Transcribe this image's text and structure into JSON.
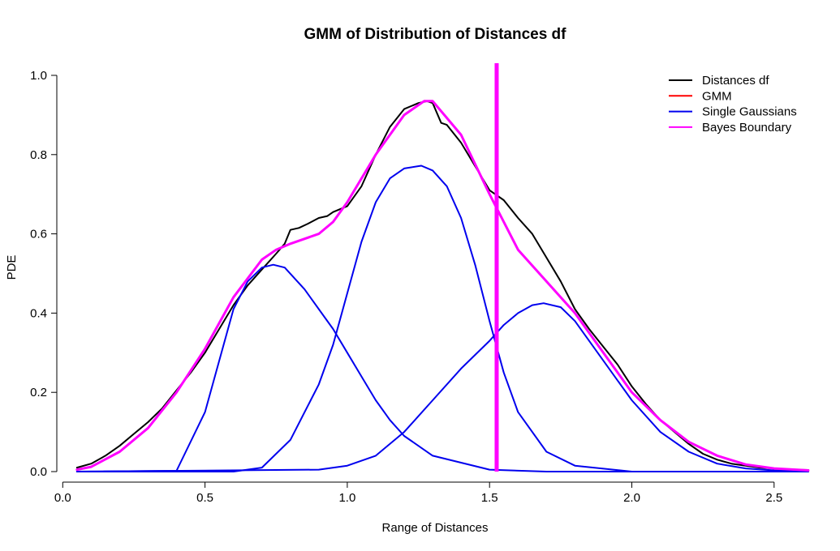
{
  "chart_data": {
    "type": "line",
    "title": "GMM of Distribution of Distances df",
    "xlabel": "Range of Distances",
    "ylabel": "PDE",
    "xlim": [
      0.05,
      2.62
    ],
    "ylim": [
      0.0,
      1.0
    ],
    "x_ticks": [
      {
        "value": 0.0,
        "label": "0.0"
      },
      {
        "value": 0.5,
        "label": "0.5"
      },
      {
        "value": 1.0,
        "label": "1.0"
      },
      {
        "value": 1.5,
        "label": "1.5"
      },
      {
        "value": 2.0,
        "label": "2.0"
      },
      {
        "value": 2.5,
        "label": "2.5"
      }
    ],
    "y_ticks": [
      {
        "value": 0.0,
        "label": "0.0"
      },
      {
        "value": 0.2,
        "label": "0.2"
      },
      {
        "value": 0.4,
        "label": "0.4"
      },
      {
        "value": 0.6,
        "label": "0.6"
      },
      {
        "value": 0.8,
        "label": "0.8"
      },
      {
        "value": 1.0,
        "label": "1.0"
      }
    ],
    "grid": false,
    "legend_position": "top-right",
    "legend": [
      {
        "label": "Distances df",
        "color": "#000000"
      },
      {
        "label": "GMM",
        "color": "#ff0000"
      },
      {
        "label": "Single Gaussians",
        "color": "#0000ee"
      },
      {
        "label": "Bayes Boundary",
        "color": "#ff00ff"
      }
    ],
    "series": [
      {
        "label": "Distances df",
        "color": "#000000",
        "x": [
          0.05,
          0.1,
          0.15,
          0.2,
          0.25,
          0.3,
          0.35,
          0.4,
          0.45,
          0.5,
          0.55,
          0.6,
          0.65,
          0.7,
          0.75,
          0.78,
          0.8,
          0.83,
          0.86,
          0.9,
          0.93,
          0.95,
          1.0,
          1.05,
          1.1,
          1.15,
          1.2,
          1.25,
          1.28,
          1.3,
          1.33,
          1.35,
          1.4,
          1.45,
          1.5,
          1.55,
          1.6,
          1.65,
          1.7,
          1.75,
          1.8,
          1.85,
          1.9,
          1.95,
          2.0,
          2.05,
          2.1,
          2.15,
          2.2,
          2.25,
          2.3,
          2.35,
          2.4,
          2.45,
          2.5,
          2.55,
          2.62
        ],
        "y": [
          0.01,
          0.02,
          0.04,
          0.065,
          0.095,
          0.125,
          0.16,
          0.205,
          0.25,
          0.3,
          0.36,
          0.42,
          0.47,
          0.51,
          0.55,
          0.575,
          0.61,
          0.615,
          0.625,
          0.64,
          0.645,
          0.655,
          0.67,
          0.72,
          0.8,
          0.87,
          0.915,
          0.93,
          0.935,
          0.93,
          0.88,
          0.875,
          0.83,
          0.77,
          0.71,
          0.685,
          0.64,
          0.6,
          0.54,
          0.48,
          0.41,
          0.36,
          0.315,
          0.27,
          0.215,
          0.17,
          0.13,
          0.1,
          0.07,
          0.045,
          0.03,
          0.02,
          0.015,
          0.01,
          0.008,
          0.005,
          0.004
        ]
      },
      {
        "label": "GMM",
        "color": "#ff0000",
        "x": [
          0.05,
          0.1,
          0.2,
          0.3,
          0.4,
          0.5,
          0.6,
          0.7,
          0.75,
          0.8,
          0.9,
          0.95,
          1.0,
          1.1,
          1.2,
          1.27,
          1.3,
          1.4,
          1.5,
          1.6,
          1.7,
          1.8,
          1.9,
          2.0,
          2.1,
          2.2,
          2.3,
          2.4,
          2.5,
          2.62
        ],
        "y": [
          0.005,
          0.012,
          0.05,
          0.11,
          0.2,
          0.31,
          0.44,
          0.535,
          0.56,
          0.575,
          0.6,
          0.63,
          0.68,
          0.8,
          0.9,
          0.935,
          0.935,
          0.85,
          0.7,
          0.56,
          0.48,
          0.4,
          0.3,
          0.2,
          0.13,
          0.075,
          0.04,
          0.018,
          0.008,
          0.003
        ]
      },
      {
        "label": "Single Gaussians",
        "color": "#0000ee",
        "x": [
          0.05,
          0.4,
          0.5,
          0.6,
          0.65,
          0.7,
          0.74,
          0.78,
          0.85,
          0.9,
          0.95,
          1.0,
          1.05,
          1.1,
          1.15,
          1.2,
          1.3,
          1.5,
          1.7,
          2.0,
          2.62
        ],
        "y": [
          0.0,
          0.002,
          0.15,
          0.41,
          0.48,
          0.515,
          0.522,
          0.515,
          0.46,
          0.41,
          0.36,
          0.3,
          0.24,
          0.18,
          0.13,
          0.09,
          0.04,
          0.005,
          0.0,
          0.0,
          0.0
        ]
      },
      {
        "label": "Single Gaussians",
        "color": "#0000ee",
        "x": [
          0.05,
          0.6,
          0.7,
          0.8,
          0.9,
          0.95,
          1.0,
          1.05,
          1.1,
          1.15,
          1.2,
          1.26,
          1.3,
          1.35,
          1.4,
          1.45,
          1.5,
          1.55,
          1.6,
          1.7,
          1.8,
          2.0,
          2.62
        ],
        "y": [
          0.0,
          0.0,
          0.01,
          0.08,
          0.22,
          0.32,
          0.45,
          0.58,
          0.68,
          0.74,
          0.765,
          0.772,
          0.76,
          0.72,
          0.64,
          0.52,
          0.38,
          0.25,
          0.15,
          0.05,
          0.015,
          0.0,
          0.0
        ]
      },
      {
        "label": "Single Gaussians",
        "color": "#0000ee",
        "x": [
          0.05,
          0.9,
          1.0,
          1.1,
          1.2,
          1.3,
          1.4,
          1.5,
          1.55,
          1.6,
          1.65,
          1.69,
          1.75,
          1.8,
          1.9,
          2.0,
          2.1,
          2.2,
          2.3,
          2.4,
          2.5,
          2.62
        ],
        "y": [
          0.0,
          0.005,
          0.015,
          0.04,
          0.1,
          0.18,
          0.26,
          0.33,
          0.37,
          0.4,
          0.42,
          0.425,
          0.415,
          0.38,
          0.28,
          0.18,
          0.1,
          0.05,
          0.02,
          0.008,
          0.003,
          0.001
        ]
      },
      {
        "label": "Bayes Boundary",
        "color": "#ff00ff",
        "x": [
          0.05,
          0.1,
          0.2,
          0.3,
          0.4,
          0.5,
          0.6,
          0.7,
          0.75,
          0.8,
          0.9,
          0.95,
          1.0,
          1.1,
          1.2,
          1.27,
          1.3,
          1.4,
          1.5,
          1.6,
          1.7,
          1.8,
          1.9,
          2.0,
          2.1,
          2.2,
          2.3,
          2.4,
          2.5,
          2.62
        ],
        "y": [
          0.005,
          0.012,
          0.05,
          0.11,
          0.2,
          0.31,
          0.44,
          0.535,
          0.56,
          0.575,
          0.6,
          0.63,
          0.68,
          0.8,
          0.9,
          0.935,
          0.935,
          0.85,
          0.7,
          0.56,
          0.48,
          0.4,
          0.3,
          0.2,
          0.13,
          0.075,
          0.04,
          0.018,
          0.008,
          0.003
        ]
      }
    ],
    "vertical_line": {
      "label": "Bayes Boundary",
      "x": 1.525,
      "color": "#ff00ff"
    }
  }
}
